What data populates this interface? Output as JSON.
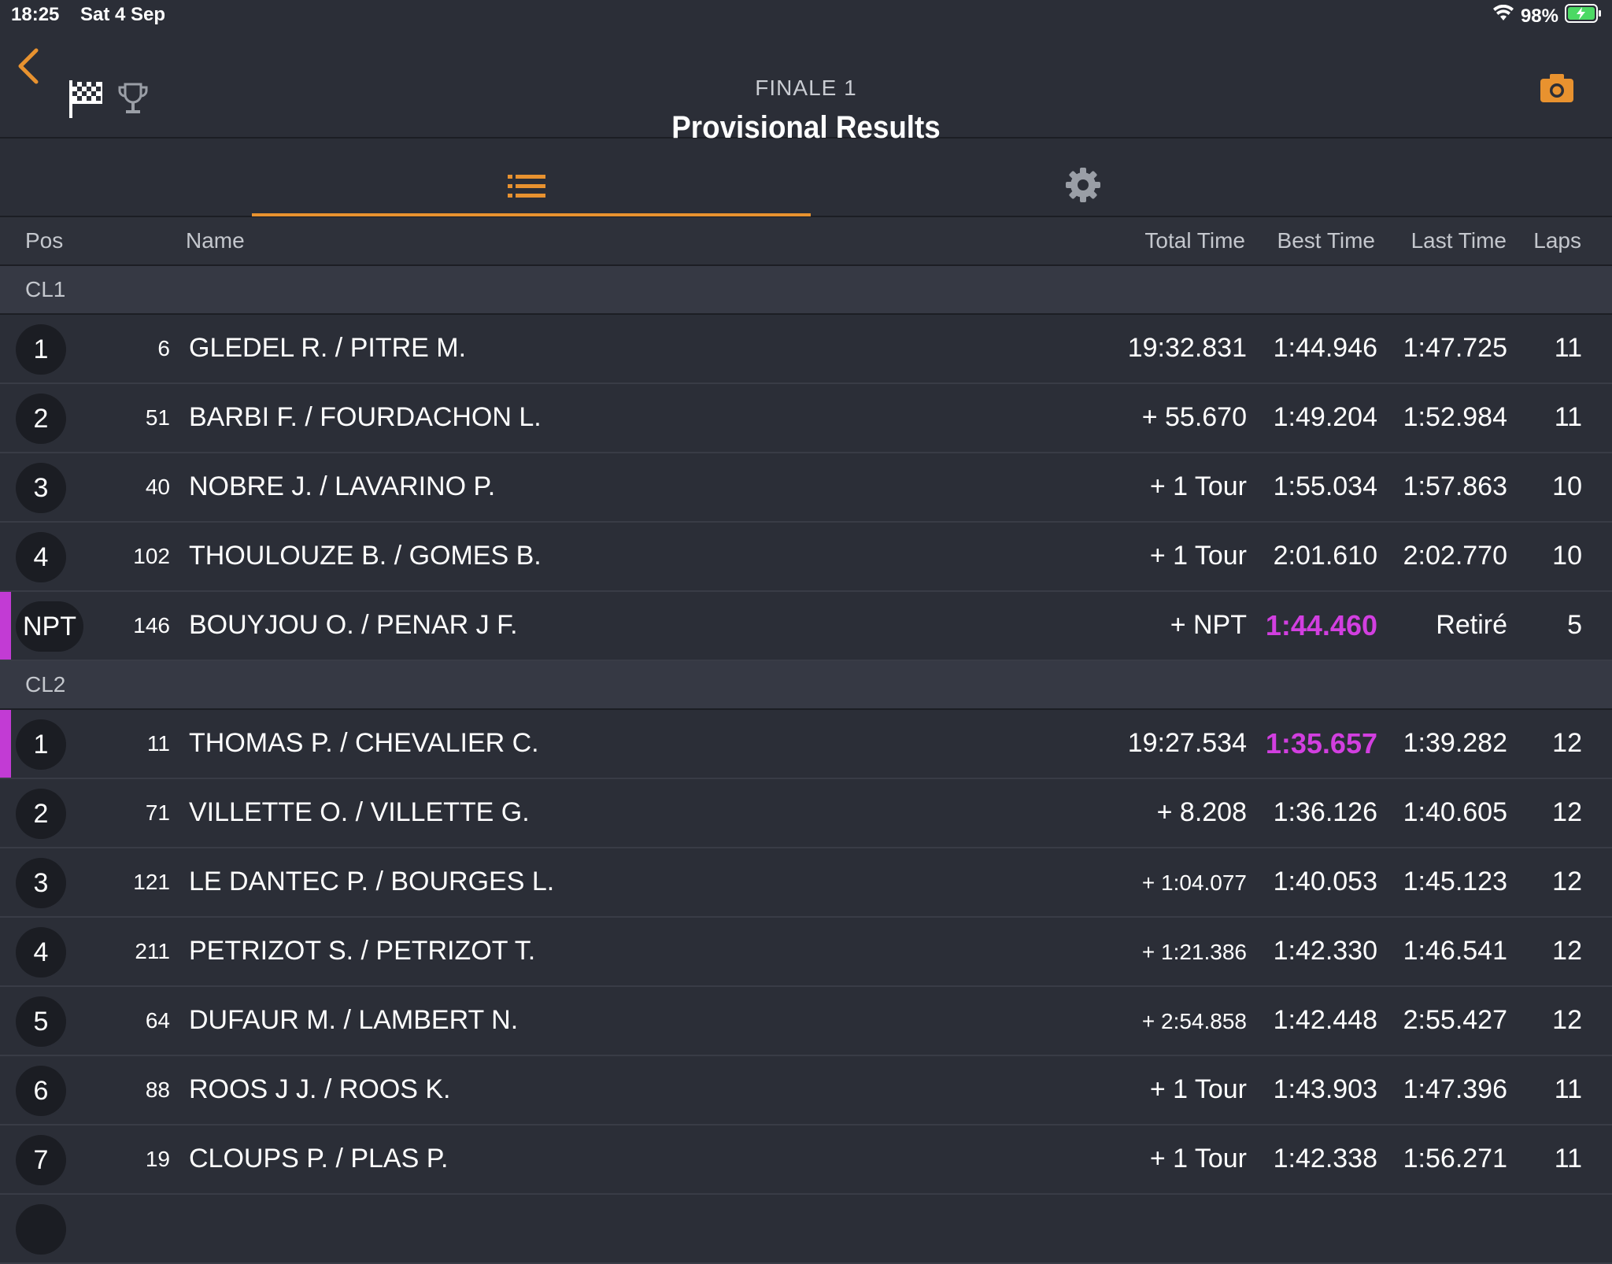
{
  "status_bar": {
    "time": "18:25",
    "date": "Sat 4 Sep",
    "battery": "98%"
  },
  "header": {
    "subtitle": "FINALE 1",
    "title": "Provisional Results"
  },
  "columns": {
    "pos": "Pos",
    "name": "Name",
    "total": "Total Time",
    "best": "Best Time",
    "last": "Last Time",
    "laps": "Laps"
  },
  "colors": {
    "accent": "#e8922f",
    "fastest": "#d23fe0",
    "background": "#2b2e37"
  },
  "categories": [
    {
      "label": "CL1",
      "rows": [
        {
          "pos": "1",
          "num": "6",
          "name": "GLEDEL R. / PITRE M.",
          "total": "19:32.831",
          "best": "1:44.946",
          "last": "1:47.725",
          "laps": "11"
        },
        {
          "pos": "2",
          "num": "51",
          "name": "BARBI F. / FOURDACHON L.",
          "total": "+ 55.670",
          "best": "1:49.204",
          "last": "1:52.984",
          "laps": "11"
        },
        {
          "pos": "3",
          "num": "40",
          "name": "NOBRE J. / LAVARINO P.",
          "total": "+ 1 Tour",
          "best": "1:55.034",
          "last": "1:57.863",
          "laps": "10"
        },
        {
          "pos": "4",
          "num": "102",
          "name": "THOULOUZE B. / GOMES B.",
          "total": "+ 1 Tour",
          "best": "2:01.610",
          "last": "2:02.770",
          "laps": "10"
        },
        {
          "pos": "NPT",
          "num": "146",
          "name": "BOUYJOU O. / PENAR J F.",
          "total": "+ NPT",
          "best": "1:44.460",
          "last": "Retiré",
          "laps": "5"
        }
      ]
    },
    {
      "label": "CL2",
      "rows": [
        {
          "pos": "1",
          "num": "11",
          "name": "THOMAS P. / CHEVALIER C.",
          "total": "19:27.534",
          "best": "1:35.657",
          "last": "1:39.282",
          "laps": "12"
        },
        {
          "pos": "2",
          "num": "71",
          "name": "VILLETTE O. / VILLETTE G.",
          "total": "+ 8.208",
          "best": "1:36.126",
          "last": "1:40.605",
          "laps": "12"
        },
        {
          "pos": "3",
          "num": "121",
          "name": "LE DANTEC P. / BOURGES L.",
          "total": "+ 1:04.077",
          "best": "1:40.053",
          "last": "1:45.123",
          "laps": "12"
        },
        {
          "pos": "4",
          "num": "211",
          "name": "PETRIZOT S. / PETRIZOT T.",
          "total": "+ 1:21.386",
          "best": "1:42.330",
          "last": "1:46.541",
          "laps": "12"
        },
        {
          "pos": "5",
          "num": "64",
          "name": "DUFAUR M. / LAMBERT N.",
          "total": "+ 2:54.858",
          "best": "1:42.448",
          "last": "2:55.427",
          "laps": "12"
        },
        {
          "pos": "6",
          "num": "88",
          "name": "ROOS J J. / ROOS K.",
          "total": "+ 1 Tour",
          "best": "1:43.903",
          "last": "1:47.396",
          "laps": "11"
        },
        {
          "pos": "7",
          "num": "19",
          "name": "CLOUPS P. / PLAS P.",
          "total": "+ 1 Tour",
          "best": "1:42.338",
          "last": "1:56.271",
          "laps": "11"
        }
      ]
    }
  ]
}
